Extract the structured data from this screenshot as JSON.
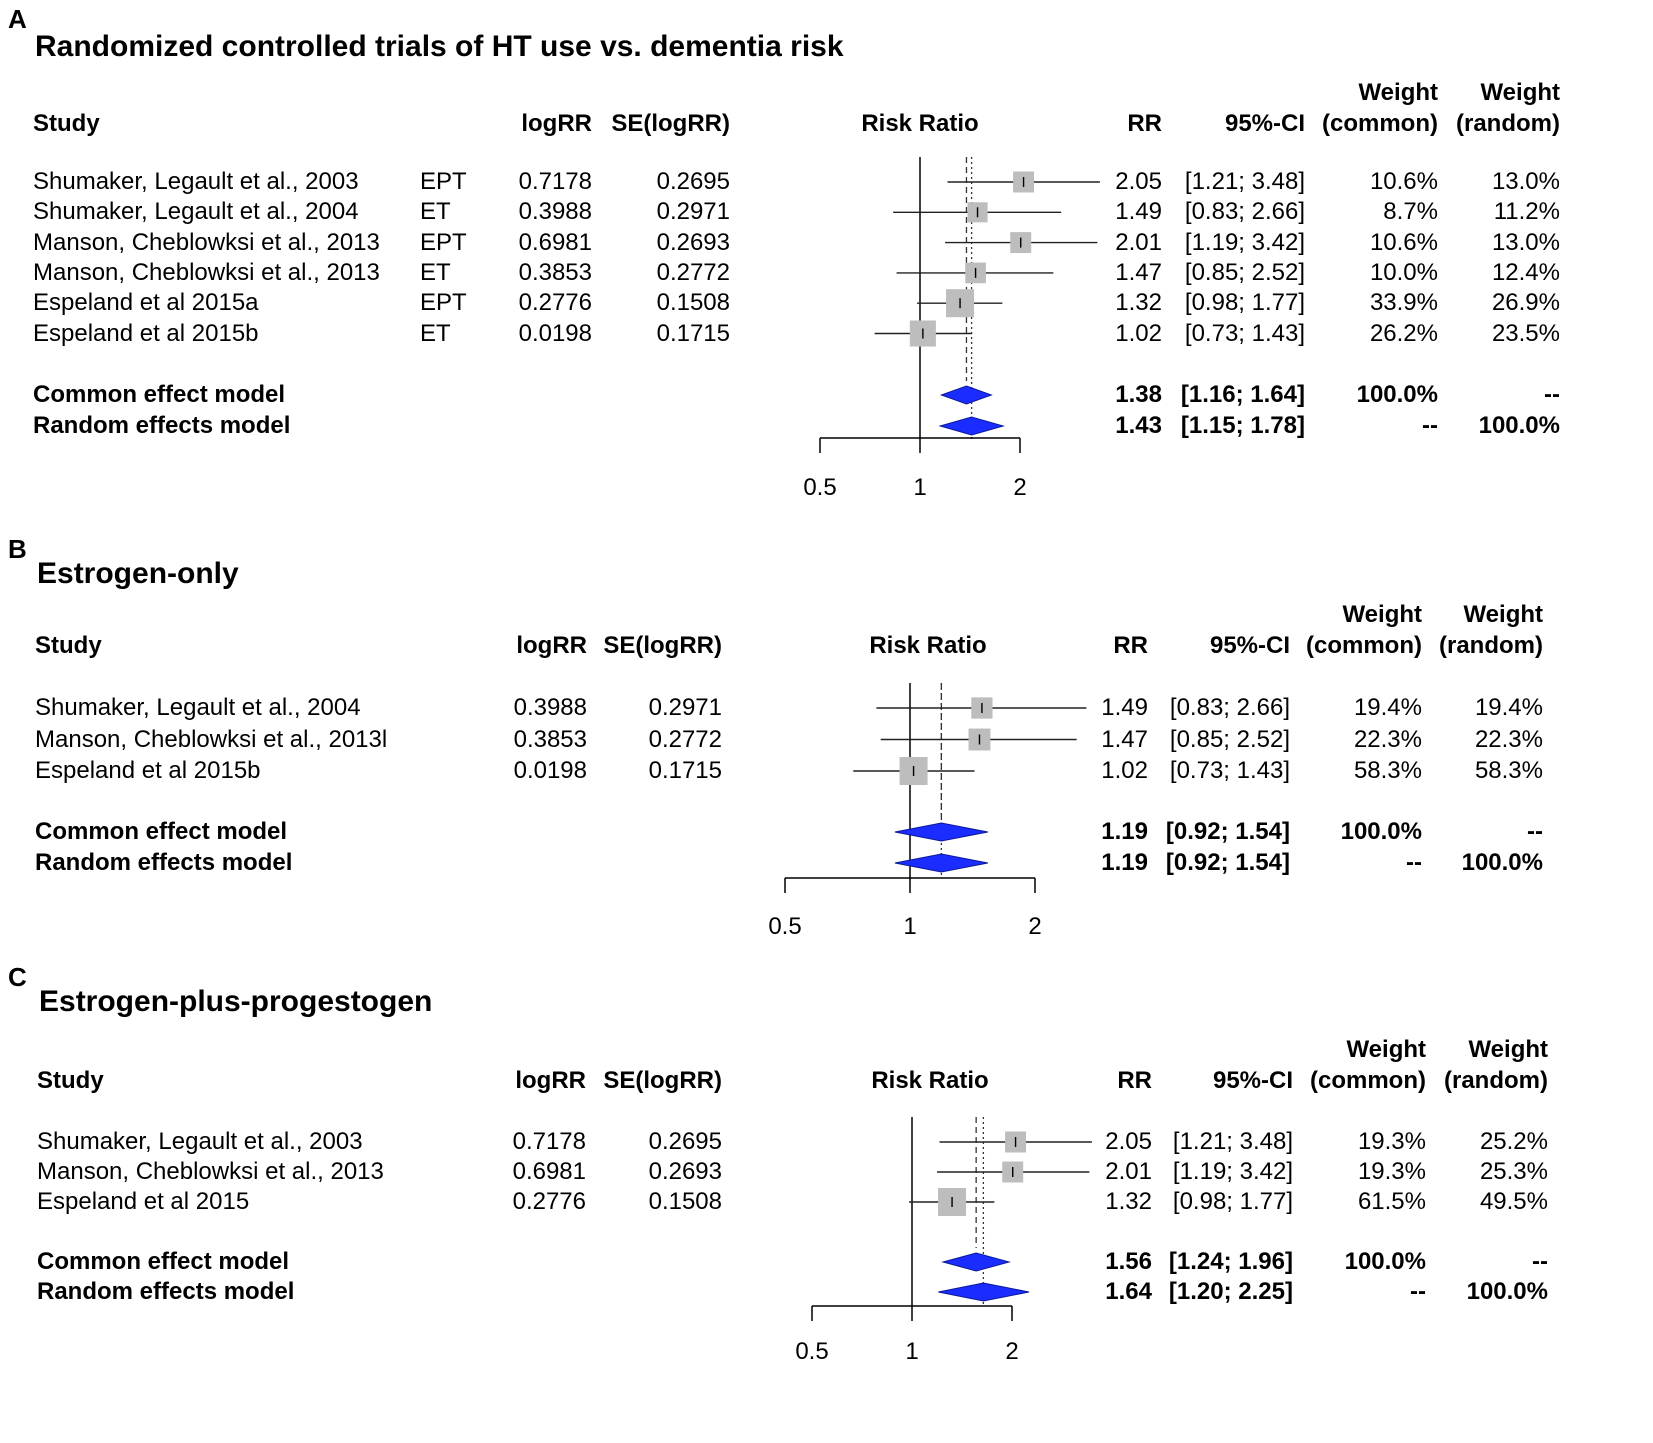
{
  "colors": {
    "diamond": "#1a2cff",
    "box": "#bdbdbd",
    "line": "#000000"
  },
  "headers": {
    "study": "Study",
    "logrr": "logRR",
    "se": "SE(logRR)",
    "plot": "Risk Ratio",
    "rr": "RR",
    "ci": "95%-CI",
    "weight": "Weight",
    "w_common": "(common)",
    "w_random": "(random)"
  },
  "chart_data": [
    {
      "type": "forest",
      "panel": "A",
      "title": "Randomized controlled trials of HT use vs. dementia risk",
      "xlabel": "Risk Ratio",
      "xscale": "log",
      "xlim": [
        0.5,
        2
      ],
      "ticks": [
        "0.5",
        "1",
        "2"
      ],
      "studies": [
        {
          "name": "Shumaker, Legault et al., 2003",
          "sub": "EPT",
          "logrr": "0.7178",
          "se": "0.2695",
          "rr": "2.05",
          "ci": "[1.21; 3.48]",
          "wc": "10.6%",
          "wr": "13.0%",
          "rr_val": 2.05,
          "lo": 1.21,
          "hi": 3.48,
          "w": 10.6
        },
        {
          "name": "Shumaker, Legault et al., 2004",
          "sub": "ET",
          "logrr": "0.3988",
          "se": "0.2971",
          "rr": "1.49",
          "ci": "[0.83; 2.66]",
          "wc": "8.7%",
          "wr": "11.2%",
          "rr_val": 1.49,
          "lo": 0.83,
          "hi": 2.66,
          "w": 8.7
        },
        {
          "name": "Manson, Cheblowksi et al., 2013",
          "sub": "EPT",
          "logrr": "0.6981",
          "se": "0.2693",
          "rr": "2.01",
          "ci": "[1.19; 3.42]",
          "wc": "10.6%",
          "wr": "13.0%",
          "rr_val": 2.01,
          "lo": 1.19,
          "hi": 3.42,
          "w": 10.6
        },
        {
          "name": "Manson, Cheblowksi et al., 2013",
          "sub": "ET",
          "logrr": "0.3853",
          "se": "0.2772",
          "rr": "1.47",
          "ci": "[0.85; 2.52]",
          "wc": "10.0%",
          "wr": "12.4%",
          "rr_val": 1.47,
          "lo": 0.85,
          "hi": 2.52,
          "w": 10.0
        },
        {
          "name": "Espeland et al 2015a",
          "sub": "EPT",
          "logrr": "0.2776",
          "se": "0.1508",
          "rr": "1.32",
          "ci": "[0.98; 1.77]",
          "wc": "33.9%",
          "wr": "26.9%",
          "rr_val": 1.32,
          "lo": 0.98,
          "hi": 1.77,
          "w": 33.9
        },
        {
          "name": "Espeland et al 2015b",
          "sub": "ET",
          "logrr": "0.0198",
          "se": "0.1715",
          "rr": "1.02",
          "ci": "[0.73; 1.43]",
          "wc": "26.2%",
          "wr": "23.5%",
          "rr_val": 1.02,
          "lo": 0.73,
          "hi": 1.43,
          "w": 26.2
        }
      ],
      "summaries": [
        {
          "name": "Common effect model",
          "rr": "1.38",
          "ci": "[1.16; 1.64]",
          "wc": "100.0%",
          "wr": "--",
          "rr_val": 1.38,
          "lo": 1.16,
          "hi": 1.64
        },
        {
          "name": "Random effects model",
          "rr": "1.43",
          "ci": "[1.15; 1.78]",
          "wc": "--",
          "wr": "100.0%",
          "rr_val": 1.43,
          "lo": 1.15,
          "hi": 1.78
        }
      ]
    },
    {
      "type": "forest",
      "panel": "B",
      "title": "Estrogen-only",
      "xlabel": "Risk Ratio",
      "xscale": "log",
      "xlim": [
        0.5,
        2
      ],
      "ticks": [
        "0.5",
        "1",
        "2"
      ],
      "studies": [
        {
          "name": "Shumaker, Legault et al., 2004",
          "sub": "",
          "logrr": "0.3988",
          "se": "0.2971",
          "rr": "1.49",
          "ci": "[0.83; 2.66]",
          "wc": "19.4%",
          "wr": "19.4%",
          "rr_val": 1.49,
          "lo": 0.83,
          "hi": 2.66,
          "w": 19.4
        },
        {
          "name": "Manson, Cheblowksi et al., 2013l",
          "sub": "",
          "logrr": "0.3853",
          "se": "0.2772",
          "rr": "1.47",
          "ci": "[0.85; 2.52]",
          "wc": "22.3%",
          "wr": "22.3%",
          "rr_val": 1.47,
          "lo": 0.85,
          "hi": 2.52,
          "w": 22.3
        },
        {
          "name": "Espeland et al 2015b",
          "sub": "",
          "logrr": "0.0198",
          "se": "0.1715",
          "rr": "1.02",
          "ci": "[0.73; 1.43]",
          "wc": "58.3%",
          "wr": "58.3%",
          "rr_val": 1.02,
          "lo": 0.73,
          "hi": 1.43,
          "w": 58.3
        }
      ],
      "summaries": [
        {
          "name": "Common effect model",
          "rr": "1.19",
          "ci": "[0.92; 1.54]",
          "wc": "100.0%",
          "wr": "--",
          "rr_val": 1.19,
          "lo": 0.92,
          "hi": 1.54
        },
        {
          "name": "Random effects model",
          "rr": "1.19",
          "ci": "[0.92; 1.54]",
          "wc": "--",
          "wr": "100.0%",
          "rr_val": 1.19,
          "lo": 0.92,
          "hi": 1.54
        }
      ]
    },
    {
      "type": "forest",
      "panel": "C",
      "title": "Estrogen-plus-progestogen",
      "xlabel": "Risk Ratio",
      "xscale": "log",
      "xlim": [
        0.5,
        2
      ],
      "ticks": [
        "0.5",
        "1",
        "2"
      ],
      "studies": [
        {
          "name": "Shumaker, Legault et al., 2003",
          "sub": "",
          "logrr": "0.7178",
          "se": "0.2695",
          "rr": "2.05",
          "ci": "[1.21; 3.48]",
          "wc": "19.3%",
          "wr": "25.2%",
          "rr_val": 2.05,
          "lo": 1.21,
          "hi": 3.48,
          "w": 19.3
        },
        {
          "name": "Manson, Cheblowksi et al., 2013",
          "sub": "",
          "logrr": "0.6981",
          "se": "0.2693",
          "rr": "2.01",
          "ci": "[1.19; 3.42]",
          "wc": "19.3%",
          "wr": "25.3%",
          "rr_val": 2.01,
          "lo": 1.19,
          "hi": 3.42,
          "w": 19.3
        },
        {
          "name": "Espeland et al 2015",
          "sub": "",
          "logrr": "0.2776",
          "se": "0.1508",
          "rr": "1.32",
          "ci": "[0.98; 1.77]",
          "wc": "61.5%",
          "wr": "49.5%",
          "rr_val": 1.32,
          "lo": 0.98,
          "hi": 1.77,
          "w": 61.5
        }
      ],
      "summaries": [
        {
          "name": "Common effect model",
          "rr": "1.56",
          "ci": "[1.24; 1.96]",
          "wc": "100.0%",
          "wr": "--",
          "rr_val": 1.56,
          "lo": 1.24,
          "hi": 1.96
        },
        {
          "name": "Random effects model",
          "rr": "1.64",
          "ci": "[1.20; 2.25]",
          "wc": "--",
          "wr": "100.0%",
          "rr_val": 1.64,
          "lo": 1.2,
          "hi": 2.25
        }
      ]
    }
  ]
}
